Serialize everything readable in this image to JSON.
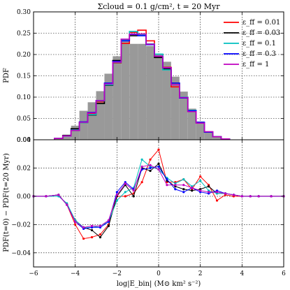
{
  "chart_data": [
    {
      "panel": "top",
      "type": "bar",
      "title": "Σcloud = 0.1 g/cm², t = 20 Myr",
      "ylabel": "PDF",
      "xlim": [
        -6,
        6
      ],
      "ylim": [
        0,
        0.3
      ],
      "yticks": [
        0.0,
        0.05,
        0.1,
        0.15,
        0.2,
        0.25,
        0.3
      ],
      "ytick_labels": [
        "0.00",
        "0.05",
        "0.10",
        "0.15",
        "0.20",
        "0.25",
        "0.30"
      ],
      "grid": true,
      "legend_position": "top-right",
      "bin_edges": [
        -5.0,
        -4.6,
        -4.2,
        -3.8,
        -3.4,
        -3.0,
        -2.6,
        -2.2,
        -1.8,
        -1.4,
        -1.0,
        -0.6,
        -0.2,
        0.2,
        0.6,
        1.0,
        1.4,
        1.8,
        2.2,
        2.6,
        3.0,
        3.4
      ],
      "background_histogram": {
        "color": "#999999",
        "values": [
          0.004,
          0.012,
          0.033,
          0.068,
          0.088,
          0.114,
          0.155,
          0.196,
          0.233,
          0.225,
          0.225,
          0.22,
          0.2,
          0.183,
          0.148,
          0.113,
          0.073,
          0.043,
          0.019,
          0.006,
          0.001
        ]
      },
      "series": [
        {
          "name": "ε_ff = 0.01",
          "color": "#ff0000",
          "values": [
            0.003,
            0.01,
            0.022,
            0.04,
            0.062,
            0.089,
            0.129,
            0.18,
            0.226,
            0.252,
            0.257,
            0.232,
            0.195,
            0.17,
            0.124,
            0.099,
            0.068,
            0.04,
            0.018,
            0.007,
            0.002
          ]
        },
        {
          "name": "ε_ff = 0.03",
          "color": "#000000",
          "values": [
            0.003,
            0.01,
            0.026,
            0.041,
            0.058,
            0.085,
            0.128,
            0.186,
            0.233,
            0.244,
            0.244,
            0.224,
            0.193,
            0.166,
            0.133,
            0.098,
            0.066,
            0.04,
            0.018,
            0.007,
            0.002
          ]
        },
        {
          "name": "ε_ff = 0.1",
          "color": "#00bfbf",
          "values": [
            0.003,
            0.009,
            0.023,
            0.04,
            0.059,
            0.091,
            0.129,
            0.181,
            0.234,
            0.254,
            0.246,
            0.225,
            0.201,
            0.164,
            0.129,
            0.1,
            0.069,
            0.04,
            0.018,
            0.007,
            0.002
          ]
        },
        {
          "name": "ε_ff = 0.3",
          "color": "#0000ff",
          "values": [
            0.003,
            0.009,
            0.022,
            0.042,
            0.064,
            0.092,
            0.133,
            0.184,
            0.232,
            0.247,
            0.244,
            0.223,
            0.196,
            0.169,
            0.133,
            0.098,
            0.068,
            0.041,
            0.018,
            0.007,
            0.002
          ]
        },
        {
          "name": "ε_ff = 1",
          "color": "#bf00bf",
          "values": [
            0.003,
            0.009,
            0.022,
            0.041,
            0.063,
            0.092,
            0.131,
            0.182,
            0.236,
            0.248,
            0.248,
            0.224,
            0.196,
            0.169,
            0.129,
            0.099,
            0.066,
            0.039,
            0.019,
            0.007,
            0.002
          ]
        }
      ]
    },
    {
      "panel": "bottom",
      "type": "line",
      "xlabel": "log|E_bin| (M⊙ km² s⁻²)",
      "ylabel": "PDF(t=0) − PDF(t=20 Myr)",
      "xlim": [
        -6,
        6
      ],
      "ylim": [
        -0.05,
        0.04
      ],
      "xticks": [
        -6,
        -4,
        -2,
        0,
        2,
        4,
        6
      ],
      "xtick_labels": [
        "−6",
        "−4",
        "−2",
        "0",
        "2",
        "4",
        "6"
      ],
      "yticks": [
        -0.04,
        -0.02,
        0.0,
        0.02
      ],
      "ytick_labels": [
        "−0.04",
        "−0.02",
        "0.00",
        "0.02"
      ],
      "top_tick_label": "0.04",
      "grid": true,
      "x": [
        -6.0,
        -5.4,
        -4.8,
        -4.4,
        -4.0,
        -3.6,
        -3.2,
        -2.8,
        -2.4,
        -2.0,
        -1.6,
        -1.2,
        -0.8,
        -0.4,
        0.0,
        0.4,
        0.8,
        1.2,
        1.6,
        2.0,
        2.4,
        2.8,
        3.2,
        3.6,
        4.0,
        4.4,
        4.8,
        5.4,
        6.0
      ],
      "series": [
        {
          "name": "ε_ff = 0.01",
          "color": "#ff0000",
          "values": [
            0.0,
            0.0,
            0.001,
            -0.006,
            -0.02,
            -0.03,
            -0.029,
            -0.027,
            -0.02,
            0.0,
            0.0,
            0.002,
            0.01,
            0.026,
            0.033,
            0.01,
            0.01,
            0.012,
            0.005,
            0.014,
            0.008,
            -0.003,
            0.001,
            0.0,
            0.0,
            0.0,
            0.0,
            0.0,
            0.0
          ]
        },
        {
          "name": "ε_ff = 0.03",
          "color": "#000000",
          "values": [
            0.0,
            0.0,
            0.001,
            -0.006,
            -0.017,
            -0.022,
            -0.024,
            -0.029,
            -0.021,
            0.0,
            0.008,
            0.0,
            0.02,
            0.018,
            0.023,
            0.011,
            0.007,
            0.005,
            0.004,
            0.005,
            0.007,
            0.002,
            0.002,
            0.001,
            0.0,
            0.0,
            0.0,
            0.0,
            0.0
          ]
        },
        {
          "name": "ε_ff = 0.1",
          "color": "#00bfbf",
          "values": [
            0.0,
            0.0,
            0.0,
            -0.005,
            -0.017,
            -0.022,
            -0.022,
            -0.021,
            -0.018,
            -0.003,
            0.003,
            0.006,
            0.026,
            0.021,
            0.019,
            0.013,
            0.009,
            0.012,
            0.007,
            0.011,
            0.004,
            0.002,
            0.002,
            0.001,
            0.0,
            0.0,
            0.0,
            0.0,
            0.0
          ]
        },
        {
          "name": "ε_ff = 0.3",
          "color": "#0000ff",
          "values": [
            0.0,
            0.0,
            0.001,
            -0.006,
            -0.018,
            -0.023,
            -0.022,
            -0.022,
            -0.018,
            0.003,
            0.01,
            0.005,
            0.019,
            0.02,
            0.021,
            0.012,
            0.005,
            0.003,
            0.006,
            0.003,
            0.002,
            0.004,
            0.002,
            0.001,
            0.0,
            0.0,
            0.0,
            0.0,
            0.0
          ]
        },
        {
          "name": "ε_ff = 1",
          "color": "#bf00bf",
          "values": [
            0.0,
            0.0,
            0.001,
            -0.006,
            -0.018,
            -0.022,
            -0.021,
            -0.021,
            -0.017,
            0.001,
            0.009,
            0.004,
            0.021,
            0.022,
            0.019,
            0.008,
            0.008,
            0.008,
            0.006,
            0.004,
            0.003,
            0.003,
            0.002,
            0.001,
            0.0,
            0.0,
            0.0,
            0.0,
            0.0
          ]
        }
      ]
    }
  ]
}
